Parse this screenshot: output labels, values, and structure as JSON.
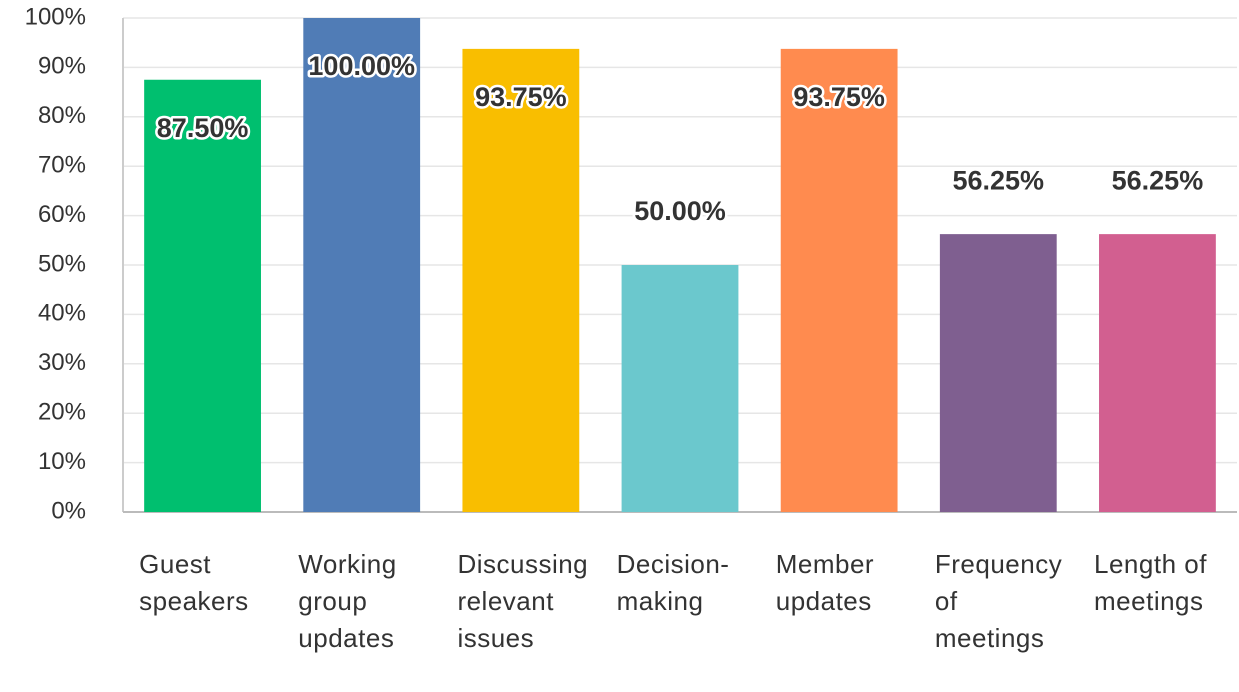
{
  "chart_data": {
    "type": "bar",
    "categories": [
      "Guest speakers",
      "Working group updates",
      "Discussing relevant issues",
      "Decision-making",
      "Member updates",
      "Frequency of meetings",
      "Length of meetings"
    ],
    "values": [
      87.5,
      100,
      93.75,
      50,
      93.75,
      56.25,
      56.25
    ],
    "value_labels": [
      "87.50%",
      "100.00%",
      "93.75%",
      "50.00%",
      "93.75%",
      "56.25%",
      "56.25%"
    ],
    "colors": [
      "#00bf6f",
      "#507cb6",
      "#f9be00",
      "#6bc8cd",
      "#ff8b4f",
      "#7f5f90",
      "#d25f90"
    ],
    "ylim": [
      0,
      100
    ],
    "yticks": [
      {
        "value": 0,
        "label": "0%"
      },
      {
        "value": 10,
        "label": "10%"
      },
      {
        "value": 20,
        "label": "20%"
      },
      {
        "value": 30,
        "label": "30%"
      },
      {
        "value": 40,
        "label": "40%"
      },
      {
        "value": 50,
        "label": "50%"
      },
      {
        "value": 60,
        "label": "60%"
      },
      {
        "value": 70,
        "label": "70%"
      },
      {
        "value": 80,
        "label": "80%"
      },
      {
        "value": 90,
        "label": "90%"
      },
      {
        "value": 100,
        "label": "100%"
      }
    ],
    "grid": true
  }
}
